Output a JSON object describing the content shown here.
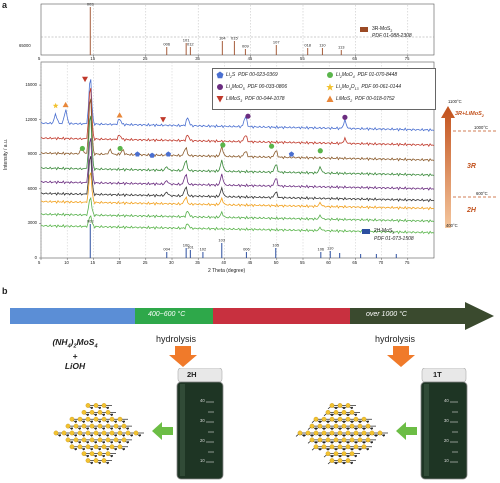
{
  "panel_a": {
    "label": "a",
    "top_plot": {
      "legend_series": "3R-MoS",
      "legend_sub": "2",
      "legend_pdf": "PDF 01-088-2308",
      "y_tick": "65000",
      "x_ticks": [
        "5",
        "15",
        "25",
        "35",
        "45",
        "55",
        "65",
        "75"
      ],
      "peak_labels": [
        "003",
        "006",
        "101",
        "012",
        "104",
        "015",
        "009",
        "107",
        "018",
        "110",
        "113"
      ]
    },
    "main_plot": {
      "ylabel": "Intensity / a.u.",
      "y_ticks": [
        "0",
        "3000",
        "6000",
        "9000",
        "12000",
        "15000"
      ],
      "x_ticks": [
        "5",
        "10",
        "15",
        "20",
        "25",
        "30",
        "35",
        "40",
        "45",
        "50",
        "55",
        "60",
        "65",
        "70",
        "75"
      ],
      "xlabel": "2 Theta (degree)",
      "legend": [
        {
          "name": "Li",
          "sub": "2",
          "after": "S",
          "pdf": "PDF 00-023-0369",
          "color": "#4a6fd0",
          "shape": "pentagon"
        },
        {
          "name": "Li",
          "sub": "2",
          "after": "MoO",
          "sub2": "4",
          "pdf": "PDF 01-070-8448",
          "color": "#5ab54b",
          "shape": "circle"
        },
        {
          "name": "Li",
          "sub": "4",
          "after": "MoO",
          "sub2": "5",
          "pdf": "PDF 00-033-0806",
          "color": "#6b2d80",
          "shape": "circle"
        },
        {
          "name": "Li",
          "sub": "2",
          "after": "Mo",
          "sub2": "4",
          "after2": "O",
          "sub3": "13",
          "pdf": "PDF 00-061-0144",
          "color": "#f2c230",
          "shape": "star"
        },
        {
          "name": "LiMoS",
          "sub": "3",
          "after": "",
          "pdf": "PDF 00-044-1078",
          "color": "#c0392b",
          "shape": "triangle-down"
        },
        {
          "name": "LiMoS",
          "sub": "2",
          "after": "",
          "pdf": "PDF 00-018-0752",
          "color": "#e8873a",
          "shape": "triangle-up"
        }
      ],
      "bottom_legend_series": "2H-MoS",
      "bottom_legend_sub": "2",
      "bottom_legend_pdf": "PDF 01-073-1508",
      "bottom_peak_labels": [
        "002",
        "004",
        "100",
        "101",
        "102",
        "103",
        "006",
        "105",
        "106",
        "110"
      ]
    },
    "temperature_bar": {
      "labels": [
        "1100°C",
        "1000°C",
        "600°C",
        "400°C"
      ],
      "phase_labels": [
        "3R+LiMoS",
        "3R",
        "2H"
      ],
      "phase_sub": "2"
    }
  },
  "panel_b": {
    "label": "b",
    "arrow_labels": [
      "400~600 °C",
      "over 1000 °C"
    ],
    "precursor_line1": "(NH",
    "precursor_sub1": "4",
    "precursor_mid": ")",
    "precursor_sub2": "2",
    "precursor_end": "MoS",
    "precursor_sub3": "4",
    "plus": "+",
    "precursor_line3": "LiOH",
    "hydrolysis_left": "hydrolysis",
    "hydrolysis_right": "hydrolysis",
    "vial_left_label": "2H",
    "vial_right_label": "1T",
    "vial_scale": [
      "40",
      "30",
      "20",
      "10"
    ],
    "colors": {
      "seg_blue": "#5b8ed6",
      "seg_green": "#2ea84a",
      "seg_red": "#c8303f",
      "seg_dark": "#3a4a2e",
      "arrow_orange": "#f07a2a",
      "arrow_green": "#6cbd45",
      "liquid": "#1e3524"
    }
  }
}
